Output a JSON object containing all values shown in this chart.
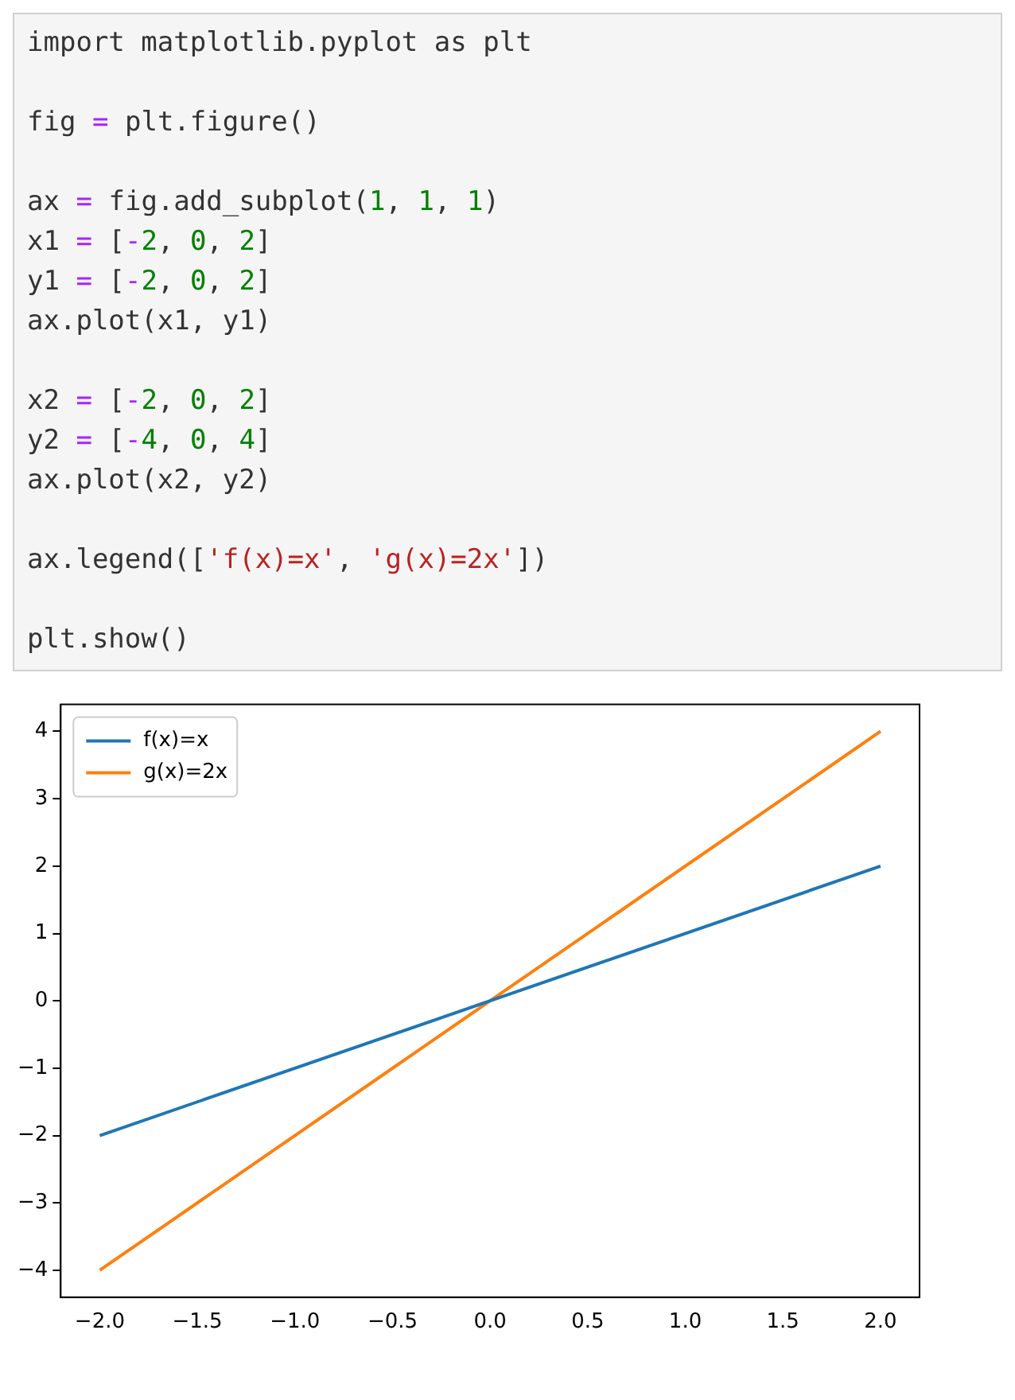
{
  "chart_data": {
    "type": "line",
    "annotations": [
      "import matplotlib.pyplot as plt",
      "fig = plt.figure()",
      "ax = fig.add_subplot(1, 1, 1)",
      "x1 = [-2, 0, 2]",
      "y1 = [-2, 0, 2]",
      "ax.plot(x1, y1)",
      "x2 = [-2, 0, 2]",
      "y2 = [-4, 0, 4]",
      "ax.plot(x2, y2)",
      "ax.legend(['f(x)=x', 'g(x)=2x'])",
      "plt.show()"
    ],
    "x": [
      -2,
      0,
      2
    ],
    "series": [
      {
        "name": "f(x)=x",
        "color": "#1f77b4",
        "values": [
          -2,
          0,
          2
        ]
      },
      {
        "name": "g(x)=2x",
        "color": "#ff7f0e",
        "values": [
          -4,
          0,
          4
        ]
      }
    ],
    "xlim": [
      -2.2,
      2.2
    ],
    "xticks": [
      {
        "value": -2,
        "label": "−2.0"
      },
      {
        "value": -1.5,
        "label": "−1.5"
      },
      {
        "value": -1,
        "label": "−1.0"
      },
      {
        "value": -0.5,
        "label": "−0.5"
      },
      {
        "value": 0,
        "label": "0.0"
      },
      {
        "value": 0.5,
        "label": "0.5"
      },
      {
        "value": 1,
        "label": "1.0"
      },
      {
        "value": 1.5,
        "label": "1.5"
      },
      {
        "value": 2,
        "label": "2.0"
      }
    ],
    "ylim": [
      -4.4,
      4.4
    ],
    "yticks": [
      {
        "value": -4,
        "label": "−4"
      },
      {
        "value": -3,
        "label": "−3"
      },
      {
        "value": -2,
        "label": "−2"
      },
      {
        "value": -1,
        "label": "−1"
      },
      0,
      1,
      2,
      3,
      4
    ],
    "legend": "top left",
    "grid": false,
    "line_style": "solid",
    "marker": "none"
  }
}
